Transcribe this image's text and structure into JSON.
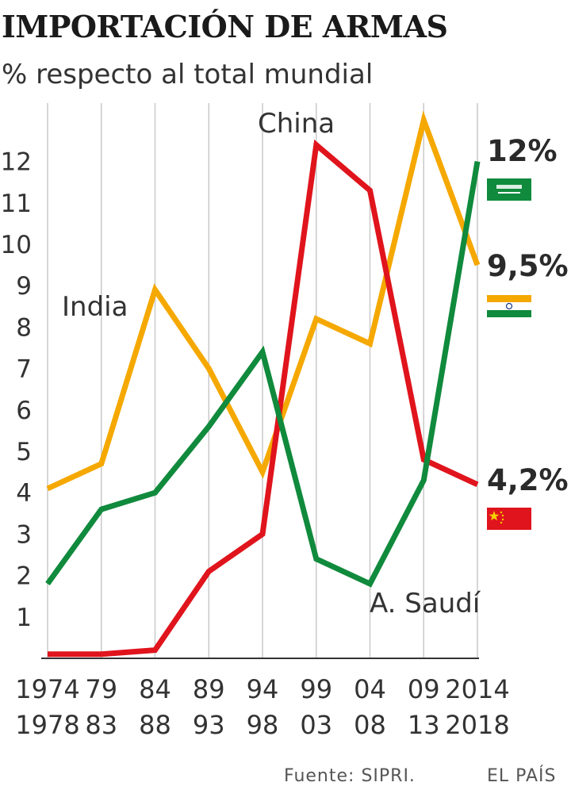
{
  "chart_data": {
    "type": "line",
    "title": "IMPORTACIÓN DE ARMAS",
    "subtitle": "% respecto al total mundial",
    "ylim": [
      0,
      12
    ],
    "yticks": [
      1,
      2,
      3,
      4,
      5,
      6,
      7,
      8,
      9,
      10,
      11,
      12
    ],
    "grid": "vertical",
    "categories": [
      {
        "top": "1974",
        "bottom": "1978"
      },
      {
        "top": "79",
        "bottom": "83"
      },
      {
        "top": "84",
        "bottom": "88"
      },
      {
        "top": "89",
        "bottom": "93"
      },
      {
        "top": "94",
        "bottom": "98"
      },
      {
        "top": "99",
        "bottom": "03"
      },
      {
        "top": "04",
        "bottom": "08"
      },
      {
        "top": "09",
        "bottom": "13"
      },
      {
        "top": "2014",
        "bottom": "2018"
      }
    ],
    "series": [
      {
        "name": "India",
        "color": "#f5a800",
        "values": [
          4.1,
          4.7,
          8.9,
          7.0,
          4.5,
          8.2,
          7.6,
          13.0,
          9.5
        ],
        "end_label": "9,5%",
        "flag": "india-flag"
      },
      {
        "name": "China",
        "color": "#e0141c",
        "values": [
          0.1,
          0.1,
          0.2,
          2.1,
          3.0,
          12.4,
          11.3,
          4.8,
          4.2
        ],
        "end_label": "4,2%",
        "flag": "china-flag"
      },
      {
        "name": "A. Saudí",
        "color": "#108a3c",
        "values": [
          1.8,
          3.6,
          4.0,
          5.6,
          7.4,
          2.4,
          1.8,
          4.3,
          12.0
        ],
        "end_label": "12%",
        "flag": "saudi-flag"
      }
    ]
  },
  "footer": {
    "source": "Fuente: SIPRI.",
    "publisher": "EL PAÍS"
  }
}
